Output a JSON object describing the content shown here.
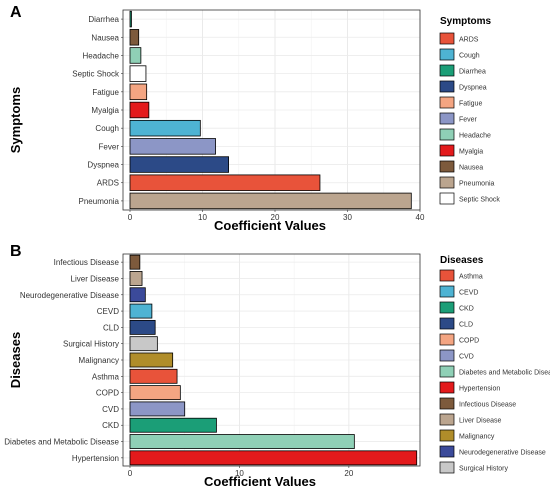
{
  "chart_data": [
    {
      "type": "bar",
      "orientation": "horizontal",
      "panel": "A",
      "ylabel": "Symptoms",
      "xlabel": "Coefficient Values",
      "xlim": [
        0,
        40
      ],
      "xticks": [
        0,
        10,
        20,
        30,
        40
      ],
      "grid": true,
      "legend_title": "Symptoms",
      "legend_position": "right",
      "categories": [
        "Diarrhea",
        "Nausea",
        "Headache",
        "Septic Shock",
        "Fatigue",
        "Myalgia",
        "Cough",
        "Fever",
        "Dyspnea",
        "ARDS",
        "Pneumonia"
      ],
      "values": [
        0.2,
        1.2,
        1.5,
        2.2,
        2.3,
        2.6,
        9.7,
        11.8,
        13.6,
        26.2,
        38.8
      ],
      "colors": [
        "#1b9e77",
        "#7d5a3c",
        "#8fd0b6",
        "#ffffff",
        "#f4a582",
        "#e31a1c",
        "#4eb3d3",
        "#8c96c6",
        "#2c4a87",
        "#e8533a",
        "#bba58f"
      ],
      "legend": [
        {
          "label": "ARDS",
          "color": "#e8533a"
        },
        {
          "label": "Cough",
          "color": "#4eb3d3"
        },
        {
          "label": "Diarrhea",
          "color": "#1b9e77"
        },
        {
          "label": "Dyspnea",
          "color": "#2c4a87"
        },
        {
          "label": "Fatigue",
          "color": "#f4a582"
        },
        {
          "label": "Fever",
          "color": "#8c96c6"
        },
        {
          "label": "Headache",
          "color": "#8fd0b6"
        },
        {
          "label": "Myalgia",
          "color": "#e31a1c"
        },
        {
          "label": "Nausea",
          "color": "#7d5a3c"
        },
        {
          "label": "Pneumonia",
          "color": "#bba58f"
        },
        {
          "label": "Septic Shock",
          "color": "#ffffff"
        }
      ]
    },
    {
      "type": "bar",
      "orientation": "horizontal",
      "panel": "B",
      "ylabel": "Diseases",
      "xlabel": "Coefficient Values",
      "xlim": [
        0,
        26.5
      ],
      "xticks": [
        0,
        10,
        20
      ],
      "grid": true,
      "legend_title": "Diseases",
      "legend_position": "right",
      "categories": [
        "Infectious Disease",
        "Liver Disease",
        "Neurodegenerative Disease",
        "CEVD",
        "CLD",
        "Surgical History",
        "Malignancy",
        "Asthma",
        "COPD",
        "CVD",
        "CKD",
        "Diabetes and Metabolic Disease",
        "Hypertension"
      ],
      "values": [
        0.9,
        1.1,
        1.4,
        2.0,
        2.3,
        2.5,
        3.9,
        4.3,
        4.6,
        5.0,
        7.9,
        20.5,
        26.2
      ],
      "colors": [
        "#7d5a3c",
        "#bba58f",
        "#3b4a9a",
        "#4eb3d3",
        "#2c4a87",
        "#c8c8c8",
        "#b08d2a",
        "#e8533a",
        "#f4a582",
        "#8c96c6",
        "#1b9e77",
        "#8fd0b6",
        "#e31a1c"
      ],
      "legend": [
        {
          "label": "Asthma",
          "color": "#e8533a"
        },
        {
          "label": "CEVD",
          "color": "#4eb3d3"
        },
        {
          "label": "CKD",
          "color": "#1b9e77"
        },
        {
          "label": "CLD",
          "color": "#2c4a87"
        },
        {
          "label": "COPD",
          "color": "#f4a582"
        },
        {
          "label": "CVD",
          "color": "#8c96c6"
        },
        {
          "label": "Diabetes and Metabolic Disease",
          "color": "#8fd0b6"
        },
        {
          "label": "Hypertension",
          "color": "#e31a1c"
        },
        {
          "label": "Infectious Disease",
          "color": "#7d5a3c"
        },
        {
          "label": "Liver Disease",
          "color": "#bba58f"
        },
        {
          "label": "Malignancy",
          "color": "#b08d2a"
        },
        {
          "label": "Neurodegenerative Disease",
          "color": "#3b4a9a"
        },
        {
          "label": "Surgical History",
          "color": "#c8c8c8"
        }
      ]
    }
  ]
}
